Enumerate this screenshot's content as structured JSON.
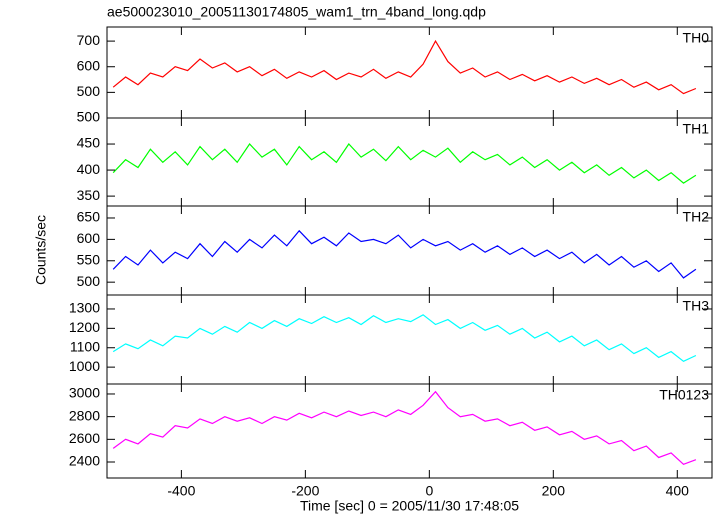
{
  "chart_data": [
    {
      "type": "line",
      "title": "ae500023010_20051130174805_wam1_trn_4band_long.qdp",
      "x": [
        -510,
        -490,
        -470,
        -450,
        -430,
        -410,
        -390,
        -370,
        -350,
        -330,
        -310,
        -290,
        -270,
        -250,
        -230,
        -210,
        -190,
        -170,
        -150,
        -130,
        -110,
        -90,
        -70,
        -50,
        -30,
        -10,
        10,
        30,
        50,
        70,
        90,
        110,
        130,
        150,
        170,
        190,
        210,
        230,
        250,
        270,
        290,
        310,
        330,
        350,
        370,
        390,
        410,
        430
      ],
      "series": [
        {
          "name": "TH0",
          "color": "#ff0000",
          "values": [
            520,
            560,
            530,
            575,
            560,
            600,
            585,
            630,
            595,
            615,
            580,
            600,
            565,
            590,
            555,
            580,
            560,
            585,
            550,
            575,
            560,
            590,
            555,
            580,
            560,
            610,
            700,
            620,
            575,
            595,
            560,
            580,
            550,
            570,
            545,
            565,
            540,
            560,
            535,
            555,
            530,
            550,
            520,
            540,
            510,
            530,
            495,
            515
          ]
        }
      ],
      "xlim": [
        -520,
        456
      ],
      "xticks": [
        -400,
        -200,
        0,
        200,
        400
      ],
      "ylim": [
        400,
        755
      ],
      "yticks": [
        500,
        600,
        700
      ]
    },
    {
      "type": "line",
      "x": [
        -510,
        -490,
        -470,
        -450,
        -430,
        -410,
        -390,
        -370,
        -350,
        -330,
        -310,
        -290,
        -270,
        -250,
        -230,
        -210,
        -190,
        -170,
        -150,
        -130,
        -110,
        -90,
        -70,
        -50,
        -30,
        -10,
        10,
        30,
        50,
        70,
        90,
        110,
        130,
        150,
        170,
        190,
        210,
        230,
        250,
        270,
        290,
        310,
        330,
        350,
        370,
        390,
        410,
        430
      ],
      "series": [
        {
          "name": "TH1",
          "color": "#00ff00",
          "values": [
            395,
            420,
            405,
            440,
            415,
            435,
            410,
            445,
            420,
            440,
            415,
            450,
            425,
            440,
            410,
            445,
            420,
            435,
            415,
            450,
            425,
            440,
            418,
            445,
            420,
            438,
            425,
            442,
            415,
            435,
            420,
            430,
            410,
            425,
            405,
            420,
            400,
            415,
            395,
            410,
            390,
            405,
            385,
            400,
            380,
            395,
            375,
            390
          ]
        }
      ],
      "xlim": [
        -520,
        456
      ],
      "xticks": [
        -400,
        -200,
        0,
        200,
        400
      ],
      "ylim": [
        331,
        500
      ],
      "yticks": [
        350,
        400,
        450,
        500
      ]
    },
    {
      "type": "line",
      "y_label": "Counts/sec",
      "x": [
        -510,
        -490,
        -470,
        -450,
        -430,
        -410,
        -390,
        -370,
        -350,
        -330,
        -310,
        -290,
        -270,
        -250,
        -230,
        -210,
        -190,
        -170,
        -150,
        -130,
        -110,
        -90,
        -70,
        -50,
        -30,
        -10,
        10,
        30,
        50,
        70,
        90,
        110,
        130,
        150,
        170,
        190,
        210,
        230,
        250,
        270,
        290,
        310,
        330,
        350,
        370,
        390,
        410,
        430
      ],
      "series": [
        {
          "name": "TH2",
          "color": "#0000ff",
          "values": [
            530,
            560,
            540,
            575,
            545,
            570,
            555,
            590,
            560,
            595,
            570,
            600,
            580,
            610,
            585,
            620,
            590,
            605,
            585,
            615,
            595,
            600,
            590,
            610,
            580,
            600,
            585,
            595,
            575,
            590,
            570,
            585,
            565,
            580,
            560,
            575,
            555,
            570,
            545,
            565,
            540,
            560,
            535,
            550,
            525,
            545,
            510,
            530
          ]
        }
      ],
      "xlim": [
        -520,
        456
      ],
      "xticks": [
        -400,
        -200,
        0,
        200,
        400
      ],
      "ylim": [
        470,
        678
      ],
      "yticks": [
        500,
        550,
        600,
        650
      ]
    },
    {
      "type": "line",
      "x": [
        -510,
        -490,
        -470,
        -450,
        -430,
        -410,
        -390,
        -370,
        -350,
        -330,
        -310,
        -290,
        -270,
        -250,
        -230,
        -210,
        -190,
        -170,
        -150,
        -130,
        -110,
        -90,
        -70,
        -50,
        -30,
        -10,
        10,
        30,
        50,
        70,
        90,
        110,
        130,
        150,
        170,
        190,
        210,
        230,
        250,
        270,
        290,
        310,
        330,
        350,
        370,
        390,
        410,
        430
      ],
      "series": [
        {
          "name": "TH3",
          "color": "#00ffff",
          "values": [
            1080,
            1120,
            1095,
            1140,
            1110,
            1160,
            1150,
            1200,
            1170,
            1210,
            1180,
            1230,
            1200,
            1240,
            1210,
            1250,
            1225,
            1260,
            1230,
            1255,
            1220,
            1265,
            1230,
            1250,
            1235,
            1270,
            1220,
            1245,
            1200,
            1230,
            1190,
            1215,
            1170,
            1200,
            1150,
            1180,
            1130,
            1160,
            1110,
            1140,
            1090,
            1120,
            1070,
            1100,
            1050,
            1080,
            1030,
            1060
          ]
        }
      ],
      "xlim": [
        -520,
        456
      ],
      "xticks": [
        -400,
        -200,
        0,
        200,
        400
      ],
      "ylim": [
        913,
        1372
      ],
      "yticks": [
        1000,
        1100,
        1200,
        1300
      ]
    },
    {
      "type": "line",
      "x_label": "Time [sec] 0 = 2005/11/30 17:48:05",
      "x": [
        -510,
        -490,
        -470,
        -450,
        -430,
        -410,
        -390,
        -370,
        -350,
        -330,
        -310,
        -290,
        -270,
        -250,
        -230,
        -210,
        -190,
        -170,
        -150,
        -130,
        -110,
        -90,
        -70,
        -50,
        -30,
        -10,
        10,
        30,
        50,
        70,
        90,
        110,
        130,
        150,
        170,
        190,
        210,
        230,
        250,
        270,
        290,
        310,
        330,
        350,
        370,
        390,
        410,
        430
      ],
      "series": [
        {
          "name": "TH0123",
          "color": "#ff00ff",
          "values": [
            2520,
            2600,
            2560,
            2650,
            2620,
            2720,
            2700,
            2780,
            2740,
            2800,
            2760,
            2790,
            2740,
            2800,
            2770,
            2830,
            2790,
            2840,
            2800,
            2850,
            2810,
            2840,
            2800,
            2860,
            2820,
            2900,
            3020,
            2880,
            2800,
            2820,
            2760,
            2780,
            2720,
            2750,
            2680,
            2710,
            2640,
            2670,
            2600,
            2630,
            2560,
            2590,
            2500,
            2540,
            2440,
            2480,
            2380,
            2420
          ]
        }
      ],
      "xlim": [
        -520,
        456
      ],
      "xticks": [
        -400,
        -200,
        0,
        200,
        400
      ],
      "ylim": [
        2259,
        3088
      ],
      "yticks": [
        2400,
        2600,
        2800,
        3000
      ]
    }
  ]
}
